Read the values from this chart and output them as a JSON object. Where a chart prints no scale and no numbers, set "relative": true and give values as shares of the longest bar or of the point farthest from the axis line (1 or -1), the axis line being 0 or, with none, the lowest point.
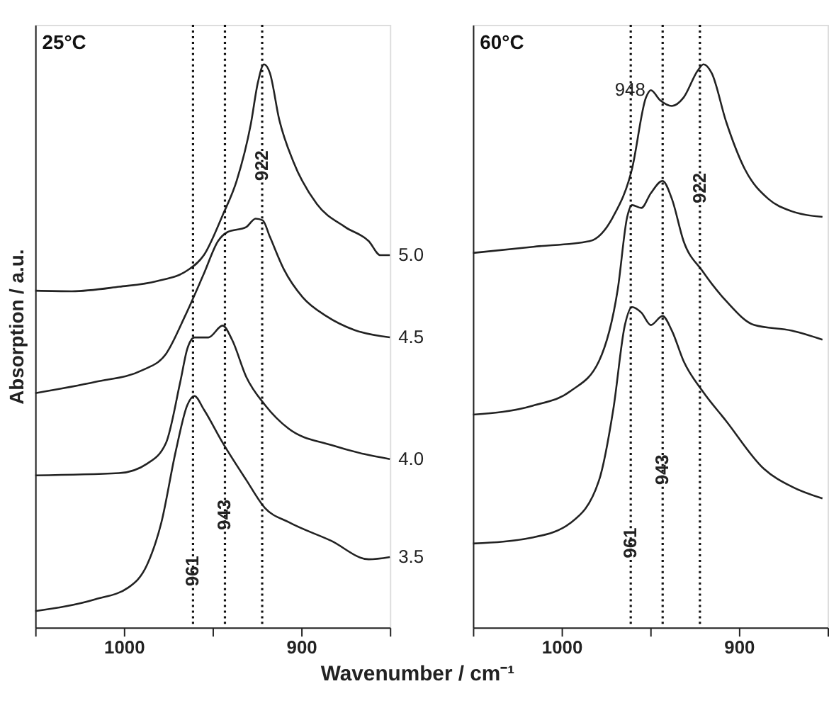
{
  "chart_data": [
    {
      "type": "line",
      "title": "25°C",
      "ylabel": "Absorption / a.u.",
      "xlabel": "Wavenumber / cm⁻¹",
      "relative": true,
      "legend": false,
      "grid": false,
      "xlim": [
        1050,
        850
      ],
      "xticks": [
        {
          "value": 1050,
          "label": null
        },
        1000,
        {
          "value": 950,
          "label": null
        },
        900,
        {
          "value": 850,
          "label": null
        }
      ],
      "series": [
        {
          "name": "5.0",
          "color": "#222222",
          "x": [
            1050,
            1029.3,
            1002.7,
            981.5,
            964.2,
            954.9,
            944.3,
            936.3,
            928.4,
            924.4,
            921.0,
            917.7,
            912.4,
            904.4,
            891.2,
            875.2,
            861.9,
            855.3,
            850
          ],
          "values": [
            0.598,
            0.597,
            0.605,
            0.615,
            0.634,
            0.661,
            0.732,
            0.794,
            0.894,
            0.968,
            1.0,
            0.985,
            0.902,
            0.827,
            0.752,
            0.711,
            0.686,
            0.661,
            0.661
          ]
        },
        {
          "name": "4.5",
          "color": "#222222",
          "x": [
            1050,
            1016.0,
            989.4,
            976.2,
            965.5,
            954.9,
            946.9,
            941.6,
            931.0,
            925.7,
            921.7,
            917.7,
            909.8,
            899.1,
            885.9,
            869.9,
            850
          ],
          "values": [
            0.416,
            0.436,
            0.457,
            0.486,
            0.553,
            0.628,
            0.686,
            0.702,
            0.711,
            0.726,
            0.723,
            0.694,
            0.636,
            0.586,
            0.553,
            0.528,
            0.515
          ]
        },
        {
          "name": "4.0",
          "color": "#222222",
          "x": [
            1050,
            1002.7,
            986.8,
            976.2,
            968.2,
            964.2,
            960.2,
            952.3,
            944.3,
            939.0,
            931.0,
            920.4,
            907.1,
            883.2,
            864.6,
            850
          ],
          "values": [
            0.27,
            0.274,
            0.291,
            0.328,
            0.436,
            0.495,
            0.515,
            0.515,
            0.536,
            0.511,
            0.445,
            0.395,
            0.353,
            0.324,
            0.308,
            0.299
          ]
        },
        {
          "name": "3.5",
          "color": "#222222",
          "x": [
            1050,
            1016.0,
            997.4,
            986.8,
            978.8,
            970.8,
            964.2,
            960.2,
            954.9,
            944.3,
            931.0,
            920.4,
            907.1,
            883.2,
            861.9,
            850
          ],
          "values": [
            0.029,
            0.05,
            0.071,
            0.112,
            0.187,
            0.312,
            0.395,
            0.411,
            0.387,
            0.328,
            0.262,
            0.212,
            0.187,
            0.154,
            0.121,
            0.125
          ]
        }
      ],
      "ref_lines": [
        {
          "axis": "x",
          "value": 961,
          "line_style": "dotted"
        },
        {
          "axis": "x",
          "value": 943,
          "line_style": "dotted"
        },
        {
          "axis": "x",
          "value": 922,
          "line_style": "dotted"
        }
      ],
      "annotations": [
        {
          "text": "961",
          "x": 961,
          "y": 0.1
        },
        {
          "text": "943",
          "x": 943,
          "y": 0.2
        },
        {
          "text": "922",
          "x": 922,
          "y": 0.82
        }
      ]
    },
    {
      "type": "line",
      "title": "60°C",
      "relative": true,
      "legend": false,
      "grid": false,
      "xlim": [
        1050,
        850
      ],
      "xticks": [
        {
          "value": 1050,
          "label": null
        },
        1000,
        {
          "value": 950,
          "label": null
        },
        900,
        {
          "value": 850,
          "label": null
        }
      ],
      "series": [
        {
          "color": "#222222",
          "x": [
            1050,
            1016.0,
            984.2,
            971.0,
            960.3,
            952.4,
            949.7,
            944.4,
            937.8,
            931.2,
            923.2,
            920.0,
            915.3,
            907.3,
            896.7,
            883.4,
            870.2,
            852.9
          ],
          "values": [
            0.665,
            0.676,
            0.686,
            0.729,
            0.814,
            0.941,
            0.954,
            0.936,
            0.926,
            0.941,
            0.989,
            1.0,
            0.984,
            0.899,
            0.814,
            0.761,
            0.739,
            0.729
          ]
        },
        {
          "color": "#222222",
          "x": [
            1050,
            1016.0,
            994.8,
            978.9,
            968.3,
            963.0,
            960.3,
            955.0,
            949.7,
            943.1,
            937.8,
            931.2,
            920.6,
            907.3,
            891.4,
            870.2,
            852.9
          ],
          "values": [
            0.378,
            0.394,
            0.42,
            0.473,
            0.601,
            0.729,
            0.75,
            0.745,
            0.771,
            0.793,
            0.761,
            0.686,
            0.633,
            0.58,
            0.537,
            0.527,
            0.511
          ]
        },
        {
          "color": "#222222",
          "x": [
            1050,
            1016.0,
            994.8,
            978.9,
            970.8,
            964.3,
            960.3,
            955.0,
            949.7,
            943.1,
            937.8,
            931.2,
            920.6,
            907.3,
            886.0,
            870.2,
            852.9
          ],
          "values": [
            0.149,
            0.16,
            0.186,
            0.261,
            0.388,
            0.537,
            0.569,
            0.559,
            0.537,
            0.553,
            0.527,
            0.473,
            0.42,
            0.367,
            0.282,
            0.25,
            0.229
          ]
        }
      ],
      "ref_lines": [
        {
          "axis": "x",
          "value": 961,
          "line_style": "dotted"
        },
        {
          "axis": "x",
          "value": 943,
          "line_style": "dotted"
        },
        {
          "axis": "x",
          "value": 922,
          "line_style": "dotted"
        }
      ],
      "annotations": [
        {
          "text": "961",
          "x": 961,
          "y": 0.15
        },
        {
          "text": "943",
          "x": 943,
          "y": 0.28
        },
        {
          "text": "922",
          "x": 922,
          "y": 0.78
        },
        {
          "text": "948",
          "x": 948,
          "y": 0.954
        }
      ]
    }
  ]
}
